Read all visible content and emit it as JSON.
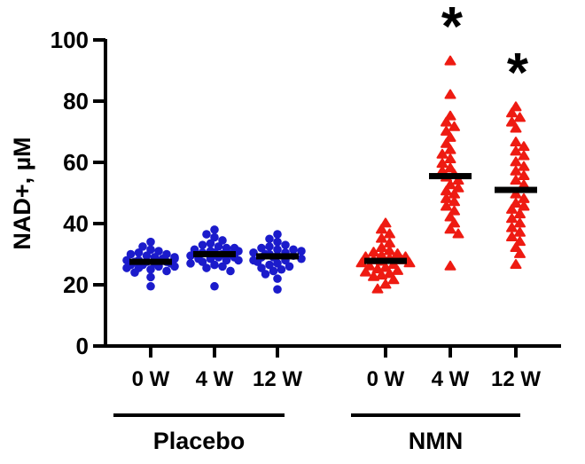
{
  "figure_title": "",
  "chart_data": {
    "type": "scatter",
    "title": "",
    "xlabel": "",
    "ylabel": "NAD+, µM",
    "ylim": [
      0,
      100
    ],
    "yticks": [
      0,
      20,
      40,
      60,
      80,
      100
    ],
    "grid": false,
    "legend": "none",
    "axis_color": "#000000",
    "median_color": "#000000",
    "significance_color": "#000000",
    "groups": [
      {
        "label": "Placebo",
        "marker": "circle",
        "color": "#1b1bcb",
        "timepoints": [
          {
            "label": "0 W",
            "median": 27.5,
            "significance": "",
            "values": [
              19.5,
              22.5,
              24,
              24.5,
              25,
              25.5,
              25.5,
              26,
              26,
              26.5,
              26.5,
              27,
              27,
              27.5,
              27.5,
              27.5,
              28,
              28,
              28.5,
              28.5,
              29,
              29,
              29.5,
              30,
              30,
              30.5,
              31,
              31.5,
              32.5,
              34
            ]
          },
          {
            "label": "4 W",
            "median": 30,
            "significance": "",
            "values": [
              19.5,
              24.5,
              25.5,
              26,
              26.5,
              27,
              27.5,
              28,
              28,
              28.5,
              28.5,
              29,
              29,
              29.5,
              30,
              30,
              30.5,
              30.5,
              31,
              31,
              31.5,
              32,
              32,
              32.5,
              33,
              33.5,
              34.5,
              35.5,
              36.5,
              38
            ]
          },
          {
            "label": "12 W",
            "median": 29.3,
            "significance": "",
            "values": [
              18.5,
              22,
              23.5,
              24.5,
              25,
              25.5,
              26,
              26.5,
              27,
              27.5,
              28,
              28,
              28.5,
              29,
              29,
              29.5,
              29.5,
              30,
              30,
              30.5,
              30.5,
              31,
              31.5,
              31.5,
              32,
              32.5,
              33,
              34,
              35,
              36.5
            ]
          }
        ]
      },
      {
        "label": "NMN",
        "marker": "triangle",
        "color": "#ee1b12",
        "timepoints": [
          {
            "label": "0 W",
            "median": 27.8,
            "significance": "",
            "values": [
              18.5,
              20,
              21.5,
              22.5,
              23,
              23.5,
              24,
              24.5,
              25,
              25.5,
              26,
              26.5,
              27,
              27,
              27.5,
              28,
              28,
              28.5,
              29,
              29,
              29.5,
              30,
              30.5,
              31,
              32,
              33.5,
              35,
              36.5,
              38,
              40
            ]
          },
          {
            "label": "4 W",
            "median": 55.5,
            "significance": "*",
            "values": [
              26,
              36.5,
              38,
              40,
              42,
              44,
              45.5,
              47,
              48,
              49.5,
              50.5,
              51.5,
              52.5,
              54,
              55,
              56,
              57,
              58,
              59.5,
              61,
              62.5,
              64,
              66,
              68,
              70,
              71.5,
              73,
              75,
              82,
              93
            ]
          },
          {
            "label": "12 W",
            "median": 51,
            "significance": "*",
            "values": [
              26.5,
              30,
              32,
              34,
              35.5,
              37,
              38.5,
              40,
              41.5,
              43,
              44.5,
              45.5,
              46.5,
              48,
              49.5,
              52.5,
              54,
              55.5,
              57,
              58.5,
              60,
              62,
              63.5,
              65,
              66.5,
              71,
              73,
              74.5,
              76,
              78
            ]
          }
        ]
      }
    ]
  }
}
